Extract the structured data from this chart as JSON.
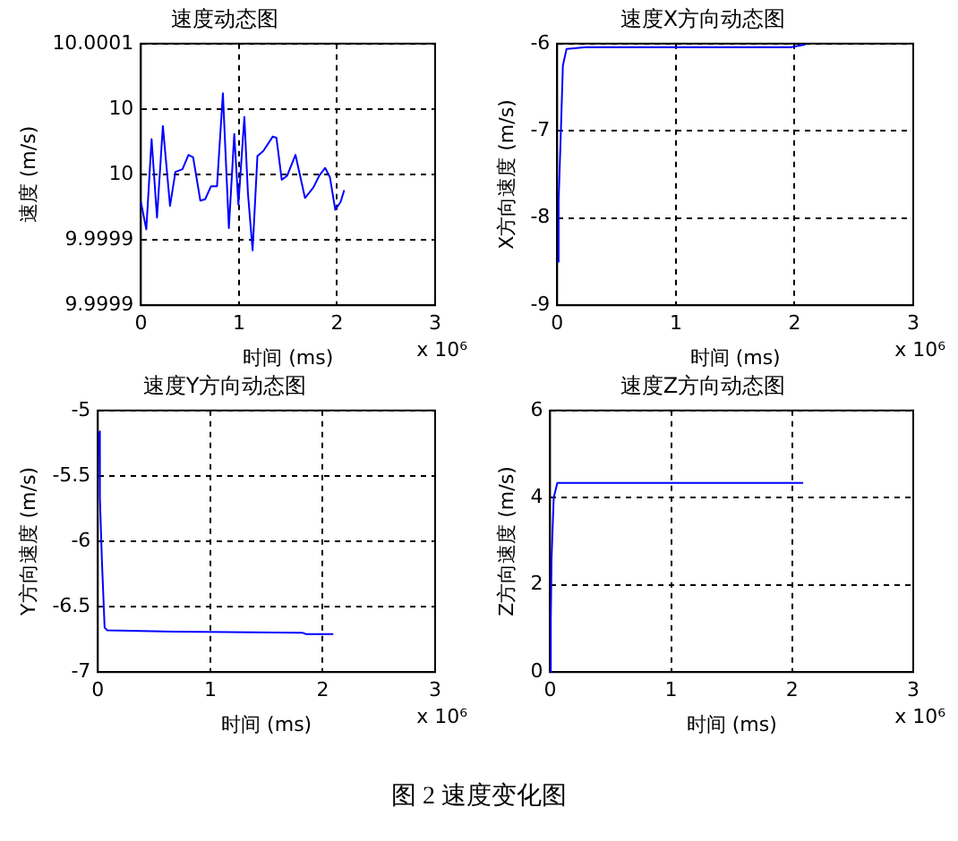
{
  "chart_data": [
    {
      "type": "line",
      "title": "速度动态图",
      "xlabel": "时间 (ms)",
      "ylabel": "速度 (m/s)",
      "color": "#0000ff",
      "grid": true,
      "annotations": [
        "x 10⁶"
      ],
      "xlim": [
        0,
        3
      ],
      "xticks": [
        0,
        1,
        2,
        3
      ],
      "ylim": [
        9.9999,
        10.0001
      ],
      "yticks": [
        {
          "value": 9.9999,
          "label": "9.9999"
        },
        {
          "value": 9.99995,
          "label": "9.9999"
        },
        {
          "value": 10,
          "label": "10"
        },
        {
          "value": 10.00005,
          "label": "10"
        },
        {
          "value": 10.0001,
          "label": "10.0001"
        }
      ],
      "x": [
        0,
        0.055,
        0.109,
        0.164,
        0.224,
        0.297,
        0.352,
        0.424,
        0.485,
        0.533,
        0.606,
        0.655,
        0.715,
        0.776,
        0.836,
        0.897,
        0.952,
        0.994,
        1.055,
        1.091,
        1.139,
        1.188,
        1.248,
        1.345,
        1.382,
        1.436,
        1.491,
        1.576,
        1.673,
        1.758,
        1.818,
        1.879,
        1.927,
        1.982,
        2.036,
        2.073
      ],
      "values": [
        9.999979,
        9.999958,
        10.000027,
        9.999967,
        10.000037,
        9.999976,
        10.000002,
        10.000004,
        10.000015,
        10.000013,
        9.99998,
        9.999981,
        9.999991,
        9.999991,
        10.000062,
        9.999959,
        10.000031,
        9.999977,
        10.000044,
        9.999986,
        9.999942,
        10.000014,
        10.000018,
        10.000029,
        10.000028,
        9.999996,
        9.999999,
        10.000015,
        9.999982,
        9.99999,
        9.999999,
        10.000005,
        9.999998,
        9.999973,
        9.999979,
        9.999988
      ]
    },
    {
      "type": "line",
      "title": "速度X方向动态图",
      "xlabel": "时间 (ms)",
      "ylabel": "X方向速度 (m/s)",
      "color": "#0000ff",
      "grid": true,
      "annotations": [
        "x 10⁶"
      ],
      "xlim": [
        0,
        3
      ],
      "xticks": [
        0,
        1,
        2,
        3
      ],
      "ylim": [
        -9,
        -6
      ],
      "yticks": [
        -9,
        -8,
        -7,
        -6
      ],
      "x": [
        0,
        0.012,
        0.03,
        0.048,
        0.079,
        0.242,
        1.97,
        2.091
      ],
      "values": [
        -8.5,
        -7.8,
        -7.05,
        -6.25,
        -6.06,
        -6.04,
        -6.04,
        -6.01
      ]
    },
    {
      "type": "line",
      "title": "速度Y方向动态图",
      "xlabel": "时间 (ms)",
      "ylabel": "Y方向速度 (m/s)",
      "color": "#0000ff",
      "grid": true,
      "annotations": [
        "x 10⁶"
      ],
      "xlim": [
        0,
        3
      ],
      "xticks": [
        0,
        1,
        2,
        3
      ],
      "ylim": [
        -7,
        -5
      ],
      "yticks": [
        -7,
        -6.5,
        -6,
        -5.5,
        -5
      ],
      "x": [
        0.012,
        0.018,
        0.036,
        0.06,
        0.084,
        0.676,
        1.822,
        1.853,
        2.094
      ],
      "values": [
        -5.16,
        -5.67,
        -6.15,
        -6.66,
        -6.68,
        -6.69,
        -6.7,
        -6.71,
        -6.71
      ]
    },
    {
      "type": "line",
      "title": "速度Z方向动态图",
      "xlabel": "时间 (ms)",
      "ylabel": "Z方向速度 (m/s)",
      "color": "#0000ff",
      "grid": true,
      "annotations": [
        "x 10⁶"
      ],
      "xlim": [
        0,
        3
      ],
      "xticks": [
        0,
        1,
        2,
        3
      ],
      "ylim": [
        0,
        6
      ],
      "yticks": [
        0,
        2,
        4,
        6
      ],
      "x": [
        0,
        0.006,
        0.012,
        0.03,
        0.06,
        2.091
      ],
      "values": [
        0,
        1.2,
        2.6,
        4.0,
        4.34,
        4.34
      ]
    },
    {
      "type": "other",
      "title": "图 2 速度变化图"
    }
  ]
}
